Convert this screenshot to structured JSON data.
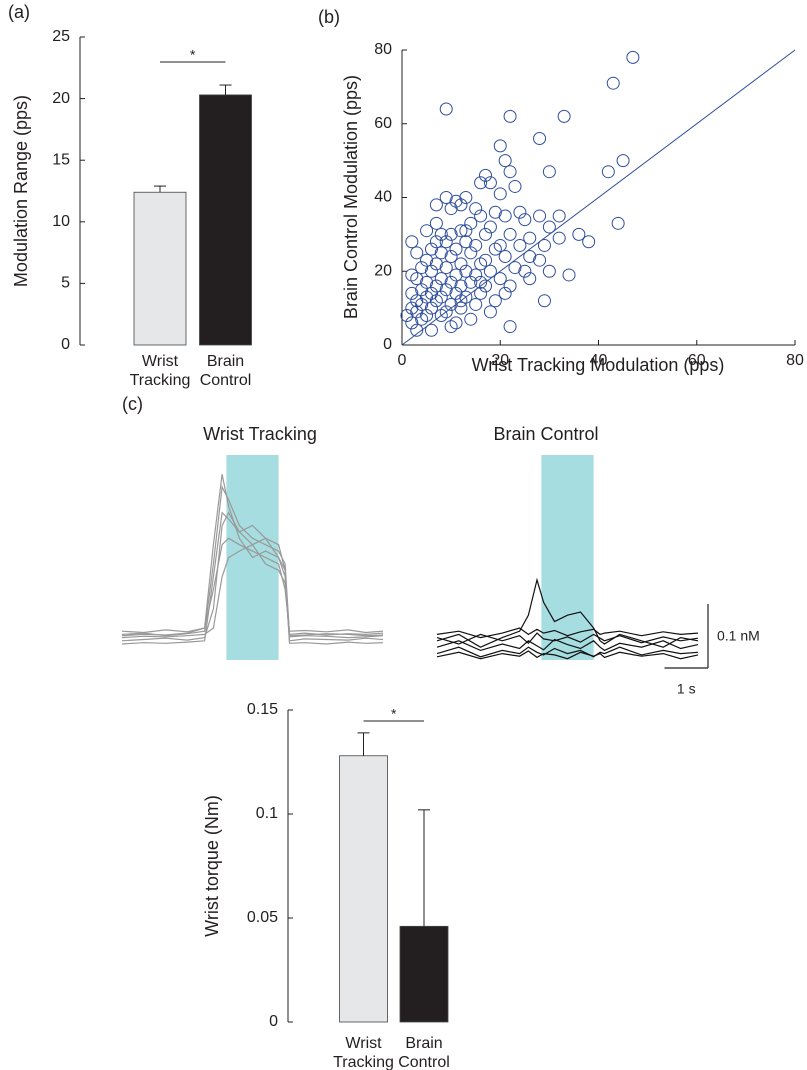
{
  "chart_data": [
    {
      "type": "bar",
      "panel_label": "(a)",
      "ylabel": "Modulation Range (pps)",
      "categories": [
        [
          "Wrist",
          "Tracking"
        ],
        [
          "Brain",
          "Control"
        ]
      ],
      "values": [
        12.4,
        20.3
      ],
      "errors": [
        0.5,
        0.8
      ],
      "colors": [
        "#e6e7e9",
        "#231f20"
      ],
      "ylim": [
        0,
        25
      ],
      "yticks": [
        0,
        5,
        10,
        15,
        20,
        25
      ],
      "annotation": "*"
    },
    {
      "type": "scatter",
      "panel_label": "(b)",
      "xlabel": "Wrist Tracking Modulation (pps)",
      "ylabel": "Brain Control Modulation (pps)",
      "color": "#2e4d9c",
      "identity_line": true,
      "x": [
        47,
        43,
        9,
        33,
        22,
        28,
        20,
        21,
        45,
        30,
        42,
        22,
        17,
        16,
        18,
        23,
        20,
        9,
        13,
        11,
        7,
        12,
        10,
        15,
        19,
        24,
        21,
        16,
        28,
        32,
        25,
        44,
        7,
        14,
        30,
        18,
        12,
        13,
        5,
        8,
        10,
        17,
        22,
        26,
        32,
        9,
        2,
        13,
        15,
        20,
        24,
        29,
        11,
        6,
        19,
        3,
        8,
        14,
        21,
        26,
        10,
        17,
        28,
        5,
        12,
        7,
        16,
        23,
        4,
        9,
        13,
        18,
        25,
        30,
        6,
        11,
        2,
        15,
        20,
        8,
        3,
        10,
        14,
        5,
        17,
        7,
        12,
        22,
        4,
        9,
        6,
        11,
        16,
        2,
        13,
        8,
        5,
        3,
        19,
        7,
        10,
        4,
        29,
        15,
        6,
        2,
        12,
        9,
        3,
        5,
        8,
        1,
        14,
        4,
        11,
        2,
        22,
        10,
        3,
        6,
        34,
        26,
        38,
        36,
        21,
        18,
        12,
        16,
        7
      ],
      "y": [
        78,
        71,
        64,
        62,
        62,
        56,
        54,
        50,
        50,
        47,
        47,
        47,
        46,
        44,
        44,
        43,
        41,
        40,
        40,
        39,
        38,
        38,
        37,
        37,
        36,
        36,
        35,
        35,
        35,
        35,
        34,
        33,
        33,
        33,
        32,
        32,
        31,
        31,
        31,
        30,
        30,
        30,
        30,
        29,
        29,
        28,
        28,
        28,
        27,
        27,
        27,
        27,
        26,
        26,
        26,
        25,
        25,
        25,
        24,
        24,
        24,
        23,
        23,
        23,
        22,
        22,
        22,
        21,
        21,
        21,
        20,
        20,
        20,
        20,
        20,
        19,
        19,
        19,
        18,
        18,
        18,
        17,
        17,
        17,
        16,
        16,
        16,
        16,
        15,
        15,
        14,
        14,
        14,
        14,
        13,
        13,
        13,
        12,
        12,
        12,
        11,
        11,
        12,
        11,
        10,
        10,
        10,
        9,
        9,
        8,
        8,
        8,
        7,
        7,
        6,
        6,
        5,
        5,
        4,
        4,
        19,
        18,
        28,
        30,
        14,
        9,
        12,
        17,
        28
      ],
      "xlim": [
        0,
        80
      ],
      "ylim": [
        0,
        80
      ],
      "xticks": [
        0,
        20,
        40,
        60,
        80
      ],
      "yticks": [
        0,
        20,
        40,
        60,
        80
      ]
    },
    {
      "type": "line",
      "panel_label": "(c)",
      "title": "Wrist Tracking",
      "xlim": [
        0,
        6
      ],
      "ylim": [
        -0.03,
        0.29
      ],
      "highlight": [
        2.4,
        3.6
      ],
      "highlight_color": "#a6dde0",
      "x": [
        0,
        0.5,
        1,
        1.5,
        1.9,
        2.1,
        2.3,
        2.45,
        2.7,
        3.0,
        3.3,
        3.6,
        3.75,
        3.85,
        4.2,
        4.7,
        5.2,
        5.6,
        6
      ],
      "series": [
        {
          "color": "#999999",
          "values": [
            0.01,
            0.012,
            0.008,
            0.011,
            0.015,
            0.12,
            0.24,
            0.22,
            0.18,
            0.16,
            0.15,
            0.14,
            0.12,
            0.01,
            0.012,
            0.009,
            0.011,
            0.01,
            0.012
          ]
        },
        {
          "color": "#999999",
          "values": [
            0.0,
            0.002,
            0.004,
            0.001,
            0.005,
            0.05,
            0.18,
            0.2,
            0.17,
            0.15,
            0.16,
            0.13,
            0.1,
            0.0,
            0.003,
            0.002,
            0.001,
            0.004,
            0.002
          ]
        },
        {
          "color": "#999999",
          "values": [
            0.015,
            0.013,
            0.017,
            0.014,
            0.02,
            0.08,
            0.15,
            0.16,
            0.15,
            0.14,
            0.13,
            0.12,
            0.08,
            0.015,
            0.016,
            0.014,
            0.017,
            0.013,
            0.015
          ]
        },
        {
          "color": "#999999",
          "values": [
            0.005,
            0.007,
            0.006,
            0.008,
            0.01,
            0.02,
            0.1,
            0.13,
            0.14,
            0.15,
            0.12,
            0.11,
            0.09,
            0.006,
            0.008,
            0.007,
            0.005,
            0.006,
            0.008
          ]
        },
        {
          "color": "#999999",
          "values": [
            -0.005,
            -0.003,
            -0.004,
            -0.002,
            0.0,
            0.1,
            0.2,
            0.19,
            0.17,
            0.18,
            0.16,
            0.15,
            0.11,
            -0.004,
            -0.003,
            -0.005,
            -0.002,
            -0.004,
            -0.003
          ]
        },
        {
          "color": "#999999",
          "values": [
            0.008,
            0.01,
            0.009,
            0.012,
            0.02,
            0.15,
            0.26,
            0.21,
            0.16,
            0.13,
            0.14,
            0.13,
            0.11,
            0.008,
            0.009,
            0.011,
            0.01,
            0.008,
            0.009
          ]
        }
      ]
    },
    {
      "type": "line",
      "title": "Brain Control",
      "xlim": [
        0,
        6
      ],
      "ylim": [
        -0.03,
        0.29
      ],
      "highlight": [
        2.4,
        3.6
      ],
      "highlight_color": "#a6dde0",
      "scale_bars": {
        "y": {
          "value": 0.1,
          "label": "0.1 nM"
        },
        "x": {
          "value": 1,
          "label": "1 s"
        }
      },
      "x": [
        0,
        0.5,
        1,
        1.5,
        1.9,
        2.1,
        2.3,
        2.45,
        2.7,
        3.0,
        3.3,
        3.6,
        3.75,
        3.85,
        4.2,
        4.7,
        5.2,
        5.6,
        6
      ],
      "series": [
        {
          "color": "#111111",
          "values": [
            0.0,
            0.01,
            -0.01,
            0.005,
            0.015,
            0.04,
            0.095,
            0.06,
            0.03,
            0.04,
            0.045,
            0.02,
            0.0,
            -0.005,
            0.01,
            0.0,
            -0.01,
            0.005,
            0.0
          ]
        },
        {
          "color": "#111111",
          "values": [
            -0.02,
            -0.01,
            -0.025,
            -0.015,
            -0.02,
            -0.01,
            -0.018,
            -0.022,
            -0.012,
            -0.02,
            -0.015,
            -0.025,
            -0.018,
            -0.02,
            -0.01,
            -0.022,
            -0.015,
            -0.02,
            -0.018
          ]
        },
        {
          "color": "#111111",
          "values": [
            0.005,
            -0.005,
            0.01,
            0.0,
            0.008,
            -0.004,
            0.012,
            0.003,
            0.0,
            0.006,
            -0.002,
            0.01,
            0.004,
            0.0,
            0.008,
            -0.003,
            0.006,
            0.0,
            0.004
          ]
        },
        {
          "color": "#111111",
          "values": [
            -0.01,
            0.0,
            -0.015,
            -0.005,
            -0.012,
            0.0,
            -0.008,
            -0.014,
            0.002,
            -0.006,
            -0.012,
            0.0,
            -0.01,
            -0.015,
            -0.004,
            -0.01,
            0.0,
            -0.012,
            -0.006
          ]
        },
        {
          "color": "#111111",
          "values": [
            0.01,
            0.015,
            0.005,
            0.012,
            0.02,
            0.01,
            0.018,
            0.012,
            0.016,
            0.008,
            0.014,
            0.018,
            0.01,
            0.012,
            0.015,
            0.008,
            0.014,
            0.01,
            0.012
          ]
        },
        {
          "color": "#111111",
          "values": [
            -0.025,
            -0.018,
            -0.028,
            -0.02,
            -0.024,
            -0.016,
            -0.026,
            -0.02,
            -0.022,
            -0.028,
            -0.018,
            -0.024,
            -0.02,
            -0.026,
            -0.018,
            -0.024,
            -0.02,
            -0.028,
            -0.022
          ]
        }
      ]
    },
    {
      "type": "bar",
      "ylabel": "Wrist torque (Nm)",
      "categories": [
        [
          "Wrist",
          "Tracking"
        ],
        [
          "Brain",
          "Control"
        ]
      ],
      "values": [
        0.128,
        0.046
      ],
      "errors": [
        0.011,
        0.056
      ],
      "colors": [
        "#e6e7e9",
        "#231f20"
      ],
      "ylim": [
        0,
        0.15
      ],
      "yticks": [
        0,
        0.05,
        0.1,
        0.15
      ],
      "annotation": "*"
    }
  ]
}
